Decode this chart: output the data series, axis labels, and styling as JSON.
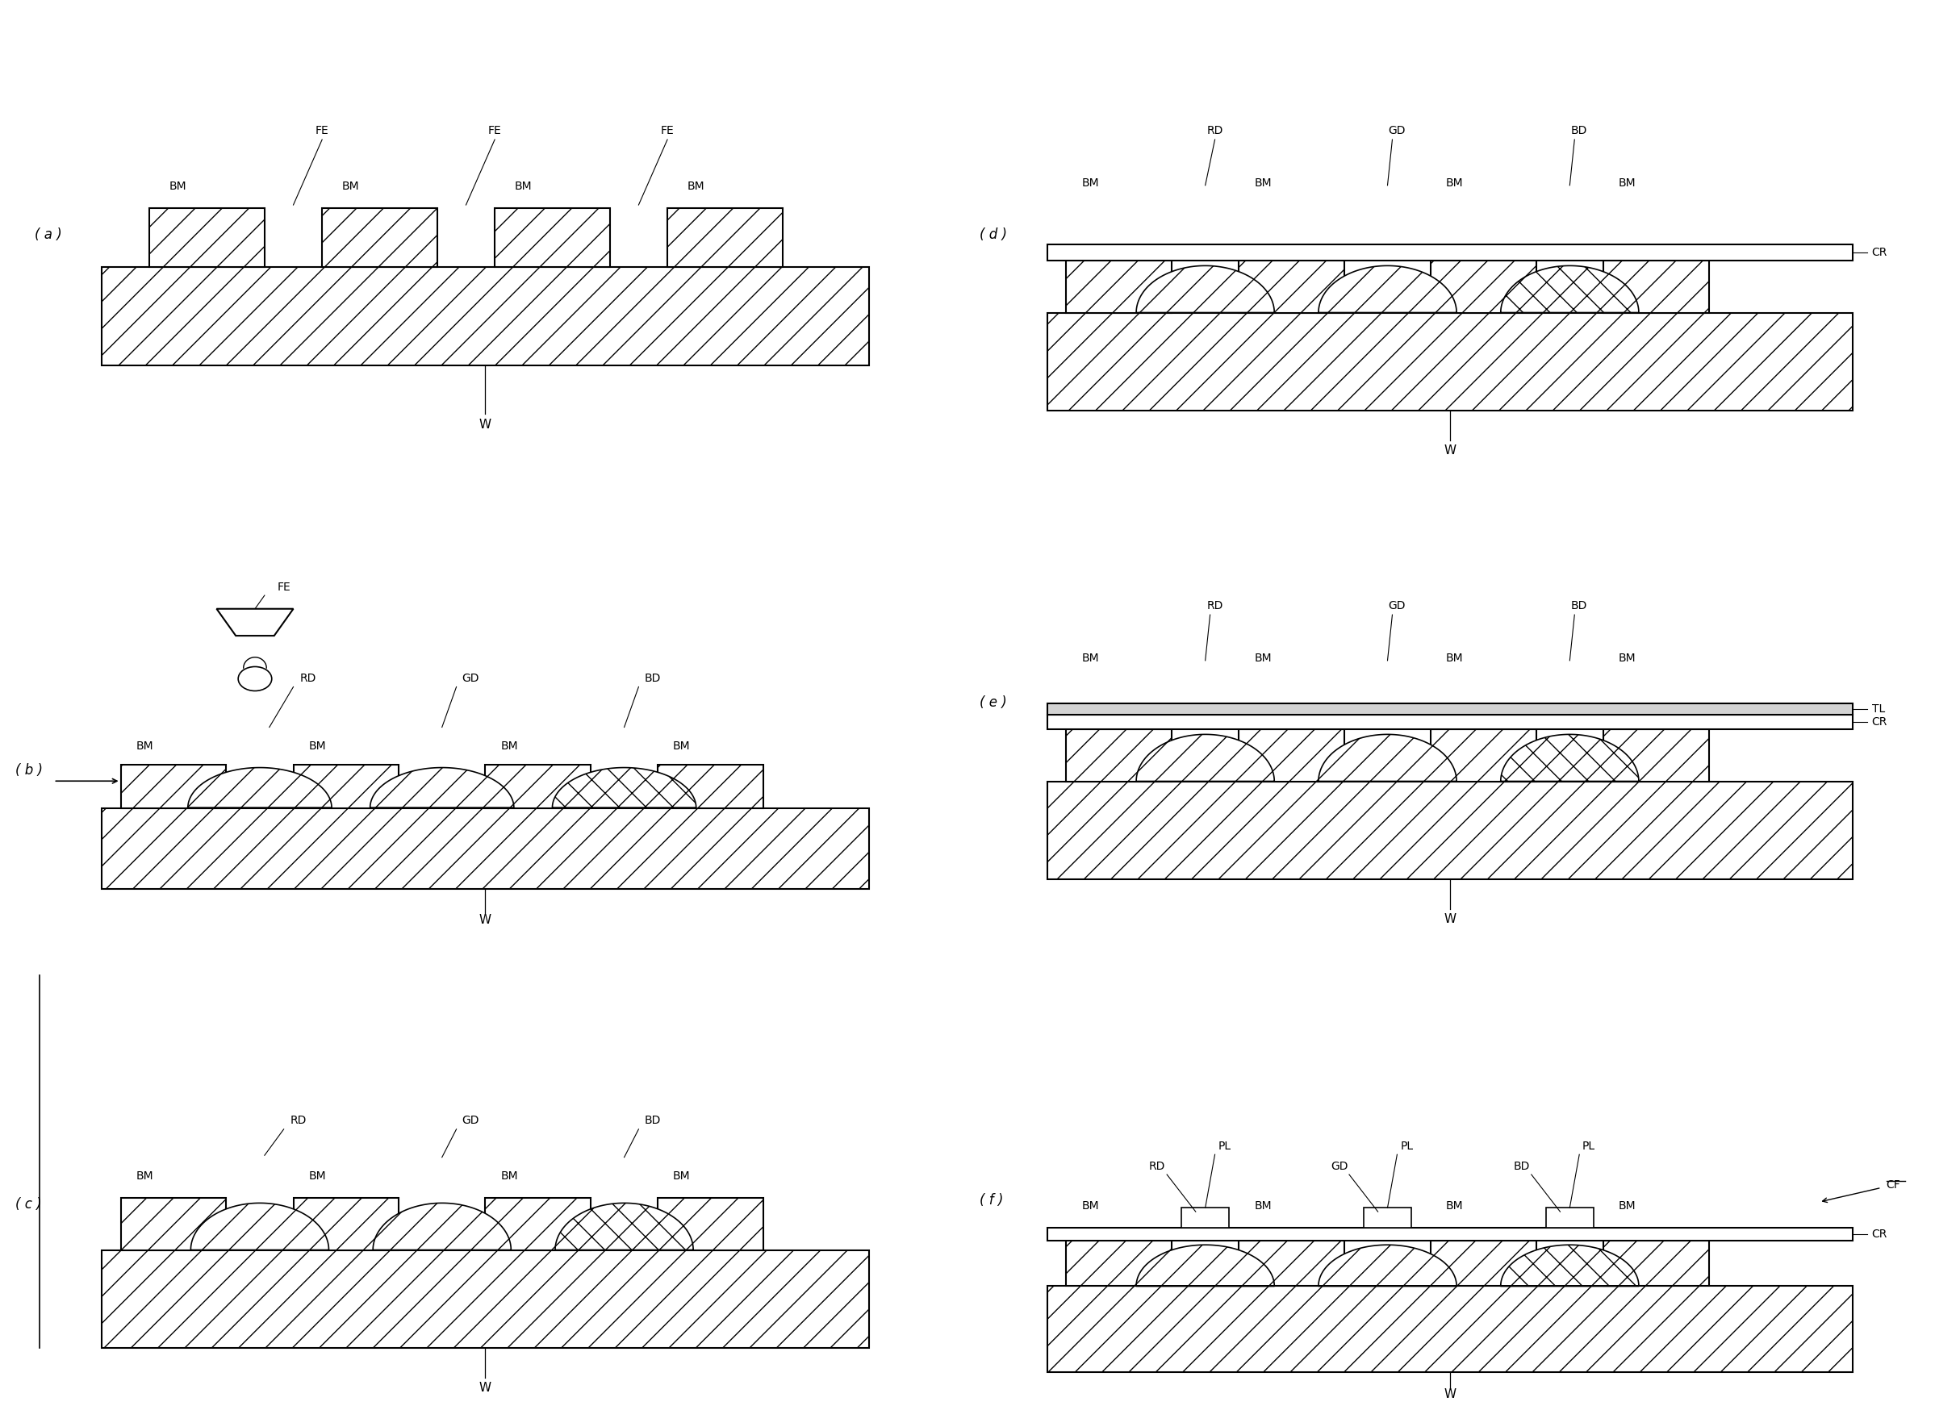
{
  "bg_color": "#ffffff",
  "line_color": "#000000",
  "hatch_diagonal": "/",
  "hatch_cross": "x",
  "panels": [
    "a",
    "b",
    "c",
    "d",
    "e",
    "f"
  ]
}
